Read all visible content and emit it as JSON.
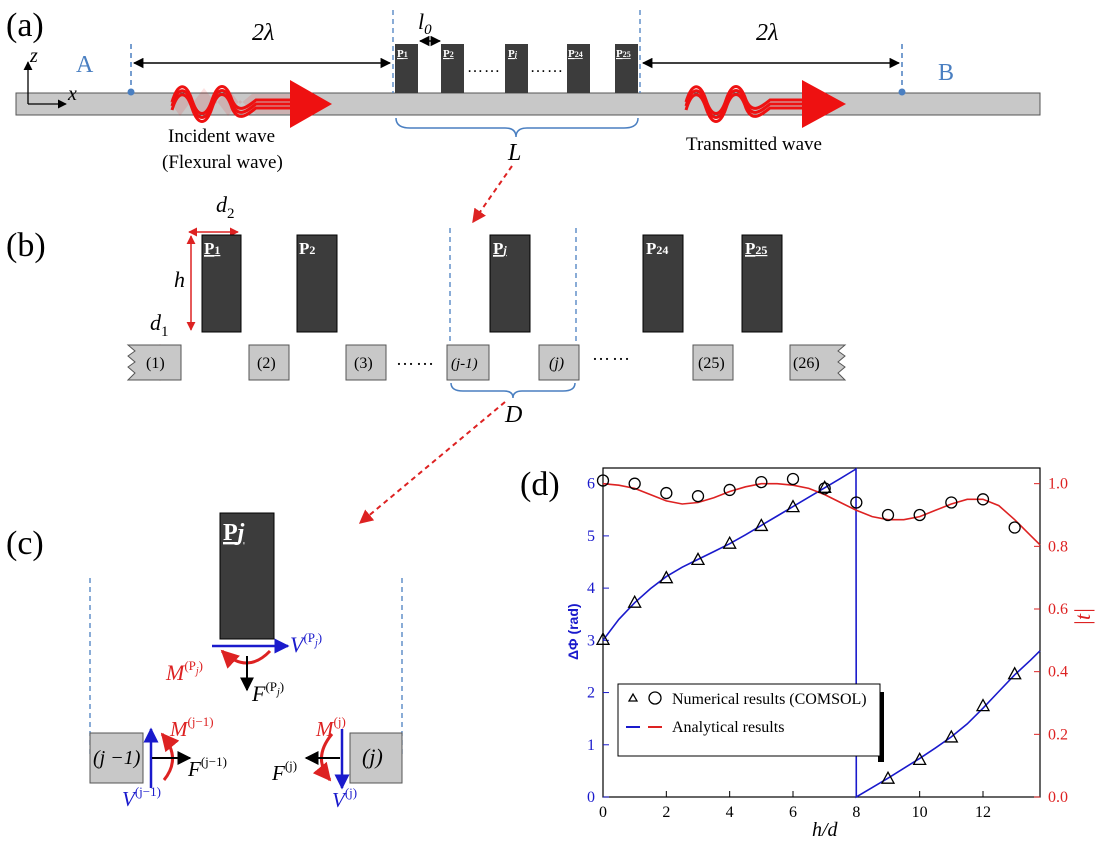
{
  "panel_a": {
    "label": "(a)",
    "point_a": "A",
    "point_b": "B",
    "axis_z": "z",
    "axis_x": "x",
    "dist_left": "2λ",
    "dist_right": "2λ",
    "spacing": "l",
    "spacing_sub": "0",
    "pillar_labels": [
      {
        "main": "P",
        "sub": "1"
      },
      {
        "main": "P",
        "sub": "2"
      },
      {
        "main": "P",
        "sub": "j"
      },
      {
        "main": "P",
        "sub": "24"
      },
      {
        "main": "P",
        "sub": "25"
      }
    ],
    "dots": "……",
    "incident_line1": "Incident wave",
    "incident_line2": "(Flexural wave)",
    "transmitted": "Transmitted wave",
    "length": "L",
    "colors": {
      "beam": "#c8c8c8",
      "pillar": "#3c3c3c",
      "arrow": "#ee1111",
      "blue_text": "#4a7fc1",
      "dashed": "#4a7fc1"
    }
  },
  "panel_b": {
    "label": "(b)",
    "d2_main": "d",
    "d2_sub": "2",
    "h": "h",
    "d1_main": "d",
    "d1_sub": "1",
    "pillar_labels": [
      {
        "main": "P",
        "sub": "1"
      },
      {
        "main": "P",
        "sub": "2"
      },
      {
        "main": "P",
        "sub": "j"
      },
      {
        "main": "P",
        "sub": "24"
      },
      {
        "main": "P",
        "sub": "25"
      }
    ],
    "segments": [
      "(1)",
      "(2)",
      "(3)",
      "(j-1)",
      "(j)",
      "(25)",
      "(26)"
    ],
    "dots": "……",
    "D": "D"
  },
  "panel_c": {
    "label": "(c)",
    "pillar_main": "P",
    "pillar_sub": "j",
    "V_P": "V",
    "M_P": "M",
    "F_P": "F",
    "sup_P": "(P",
    "sup_j": "j",
    "seg_left": "(j −1)",
    "seg_right": "(j)",
    "M_jm1": "M",
    "F_jm1": "F",
    "V_jm1": "V",
    "sup_jm1": "(j−1)",
    "M_j": "M",
    "F_j": "F",
    "V_j": "V",
    "sup_j_only": "(j)",
    "colors": {
      "blue": "#1a1acc",
      "red": "#dd2222",
      "black": "#000000"
    }
  },
  "chart_data": {
    "label": "(d)",
    "type": "line",
    "xlabel": "h/d",
    "ylabel_left": "ΔΦ (rad)",
    "ylabel_right": "|t|",
    "xlim": [
      0,
      13.8
    ],
    "ylim_left": [
      0,
      6.3
    ],
    "ylim_right": [
      0,
      1.05
    ],
    "xticks": [
      "0",
      "2",
      "4",
      "6",
      "8",
      "10",
      "12"
    ],
    "yticks_left": [
      "0",
      "1",
      "2",
      "3",
      "4",
      "5",
      "6"
    ],
    "yticks_right": [
      "0.0",
      "0.2",
      "0.4",
      "0.6",
      "0.8",
      "1.0"
    ],
    "legend": {
      "numerical": "Numerical results (COMSOL)",
      "analytical": "Analytical results",
      "placement": "bottom-left"
    },
    "series": [
      {
        "kind": "analytical-phase",
        "axis": "left",
        "color": "#1a1acc",
        "x": [
          0,
          0.5,
          1,
          1.5,
          2,
          2.5,
          3,
          3.5,
          4,
          4.5,
          5,
          5.5,
          6,
          6.5,
          7,
          7.5,
          7.99,
          8.0,
          8.5,
          9,
          9.5,
          10,
          10.5,
          11,
          11.5,
          12,
          12.5,
          13,
          13.5,
          13.8
        ],
        "y": [
          3.0,
          3.4,
          3.72,
          3.99,
          4.22,
          4.4,
          4.55,
          4.7,
          4.85,
          5.02,
          5.2,
          5.38,
          5.56,
          5.74,
          5.92,
          6.1,
          6.28,
          0.0,
          0.18,
          0.36,
          0.55,
          0.74,
          0.94,
          1.15,
          1.4,
          1.7,
          2.02,
          2.34,
          2.62,
          2.8
        ]
      },
      {
        "kind": "analytical-transmission",
        "axis": "right",
        "color": "#dd2222",
        "x": [
          0,
          0.5,
          1,
          1.5,
          2,
          2.5,
          3,
          3.5,
          4,
          4.5,
          5,
          5.5,
          6,
          6.5,
          7,
          7.5,
          8,
          8.5,
          9,
          9.5,
          10,
          10.5,
          11,
          11.5,
          12,
          12.5,
          13,
          13.5,
          13.8
        ],
        "y": [
          1.0,
          0.995,
          0.985,
          0.965,
          0.945,
          0.935,
          0.94,
          0.955,
          0.975,
          0.99,
          1.0,
          1.0,
          0.995,
          0.985,
          0.965,
          0.94,
          0.915,
          0.895,
          0.885,
          0.885,
          0.895,
          0.915,
          0.935,
          0.95,
          0.95,
          0.93,
          0.885,
          0.835,
          0.805
        ]
      },
      {
        "kind": "numerical-phase",
        "axis": "left",
        "marker": "triangle",
        "x": [
          0,
          1,
          2,
          3,
          4,
          5,
          6,
          7,
          9,
          10,
          11,
          12,
          13
        ],
        "y": [
          3.02,
          3.73,
          4.2,
          4.55,
          4.86,
          5.2,
          5.56,
          5.93,
          0.36,
          0.72,
          1.15,
          1.75,
          2.36
        ]
      },
      {
        "kind": "numerical-transmission",
        "axis": "right",
        "marker": "circle",
        "x": [
          0,
          1,
          2,
          3,
          4,
          5,
          6,
          7,
          8,
          9,
          10,
          11,
          12,
          13
        ],
        "y": [
          1.01,
          1.0,
          0.97,
          0.96,
          0.98,
          1.005,
          1.015,
          0.985,
          0.94,
          0.9,
          0.9,
          0.94,
          0.95,
          0.86
        ]
      }
    ]
  }
}
